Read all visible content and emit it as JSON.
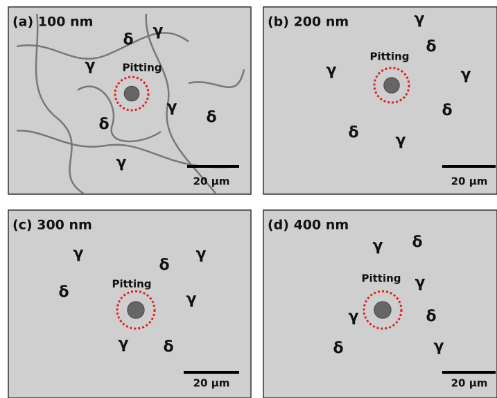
{
  "panels": [
    {
      "label": "(a) 100 nm",
      "pitting": "Pitting",
      "scale_bar": "20 µm",
      "phases": [
        "δ",
        "γ",
        "γ",
        "γ",
        "δ",
        "δ",
        "γ"
      ]
    },
    {
      "label": "(b) 200 nm",
      "pitting": "Pitting",
      "scale_bar": "20 µm",
      "phases": [
        "γ",
        "δ",
        "γ",
        "γ",
        "δ",
        "δ",
        "γ"
      ]
    },
    {
      "label": "(c) 300 nm",
      "pitting": "Pitting",
      "scale_bar": "20 µm",
      "phases": [
        "γ",
        "γ",
        "δ",
        "δ",
        "γ",
        "γ",
        "δ"
      ]
    },
    {
      "label": "(d) 400 nm",
      "pitting": "Pitting",
      "scale_bar": "20 µm",
      "phases": [
        "γ",
        "δ",
        "γ",
        "γ",
        "δ",
        "δ",
        "γ"
      ]
    }
  ]
}
